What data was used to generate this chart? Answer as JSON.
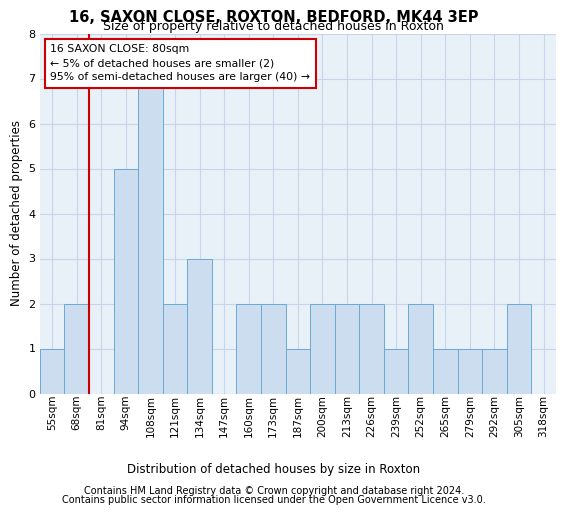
{
  "title": "16, SAXON CLOSE, ROXTON, BEDFORD, MK44 3EP",
  "subtitle": "Size of property relative to detached houses in Roxton",
  "xlabel": "Distribution of detached houses by size in Roxton",
  "ylabel": "Number of detached properties",
  "categories": [
    "55sqm",
    "68sqm",
    "81sqm",
    "94sqm",
    "108sqm",
    "121sqm",
    "134sqm",
    "147sqm",
    "160sqm",
    "173sqm",
    "187sqm",
    "200sqm",
    "213sqm",
    "226sqm",
    "239sqm",
    "252sqm",
    "265sqm",
    "279sqm",
    "292sqm",
    "305sqm",
    "318sqm"
  ],
  "values": [
    1,
    2,
    0,
    5,
    7,
    2,
    3,
    0,
    2,
    2,
    1,
    2,
    2,
    2,
    1,
    2,
    1,
    1,
    1,
    2,
    0
  ],
  "bar_color": "#ccddf0",
  "bar_edge_color": "#6aaad4",
  "grid_color": "#c8d4e8",
  "background_color": "#e8f0f8",
  "property_line_index": 2,
  "property_line_color": "#cc0000",
  "annotation_text": "16 SAXON CLOSE: 80sqm\n← 5% of detached houses are smaller (2)\n95% of semi-detached houses are larger (40) →",
  "annotation_box_facecolor": "#ffffff",
  "annotation_box_edgecolor": "#cc0000",
  "footer_line1": "Contains HM Land Registry data © Crown copyright and database right 2024.",
  "footer_line2": "Contains public sector information licensed under the Open Government Licence v3.0.",
  "ylim": [
    0,
    8
  ],
  "yticks": [
    0,
    1,
    2,
    3,
    4,
    5,
    6,
    7,
    8
  ]
}
